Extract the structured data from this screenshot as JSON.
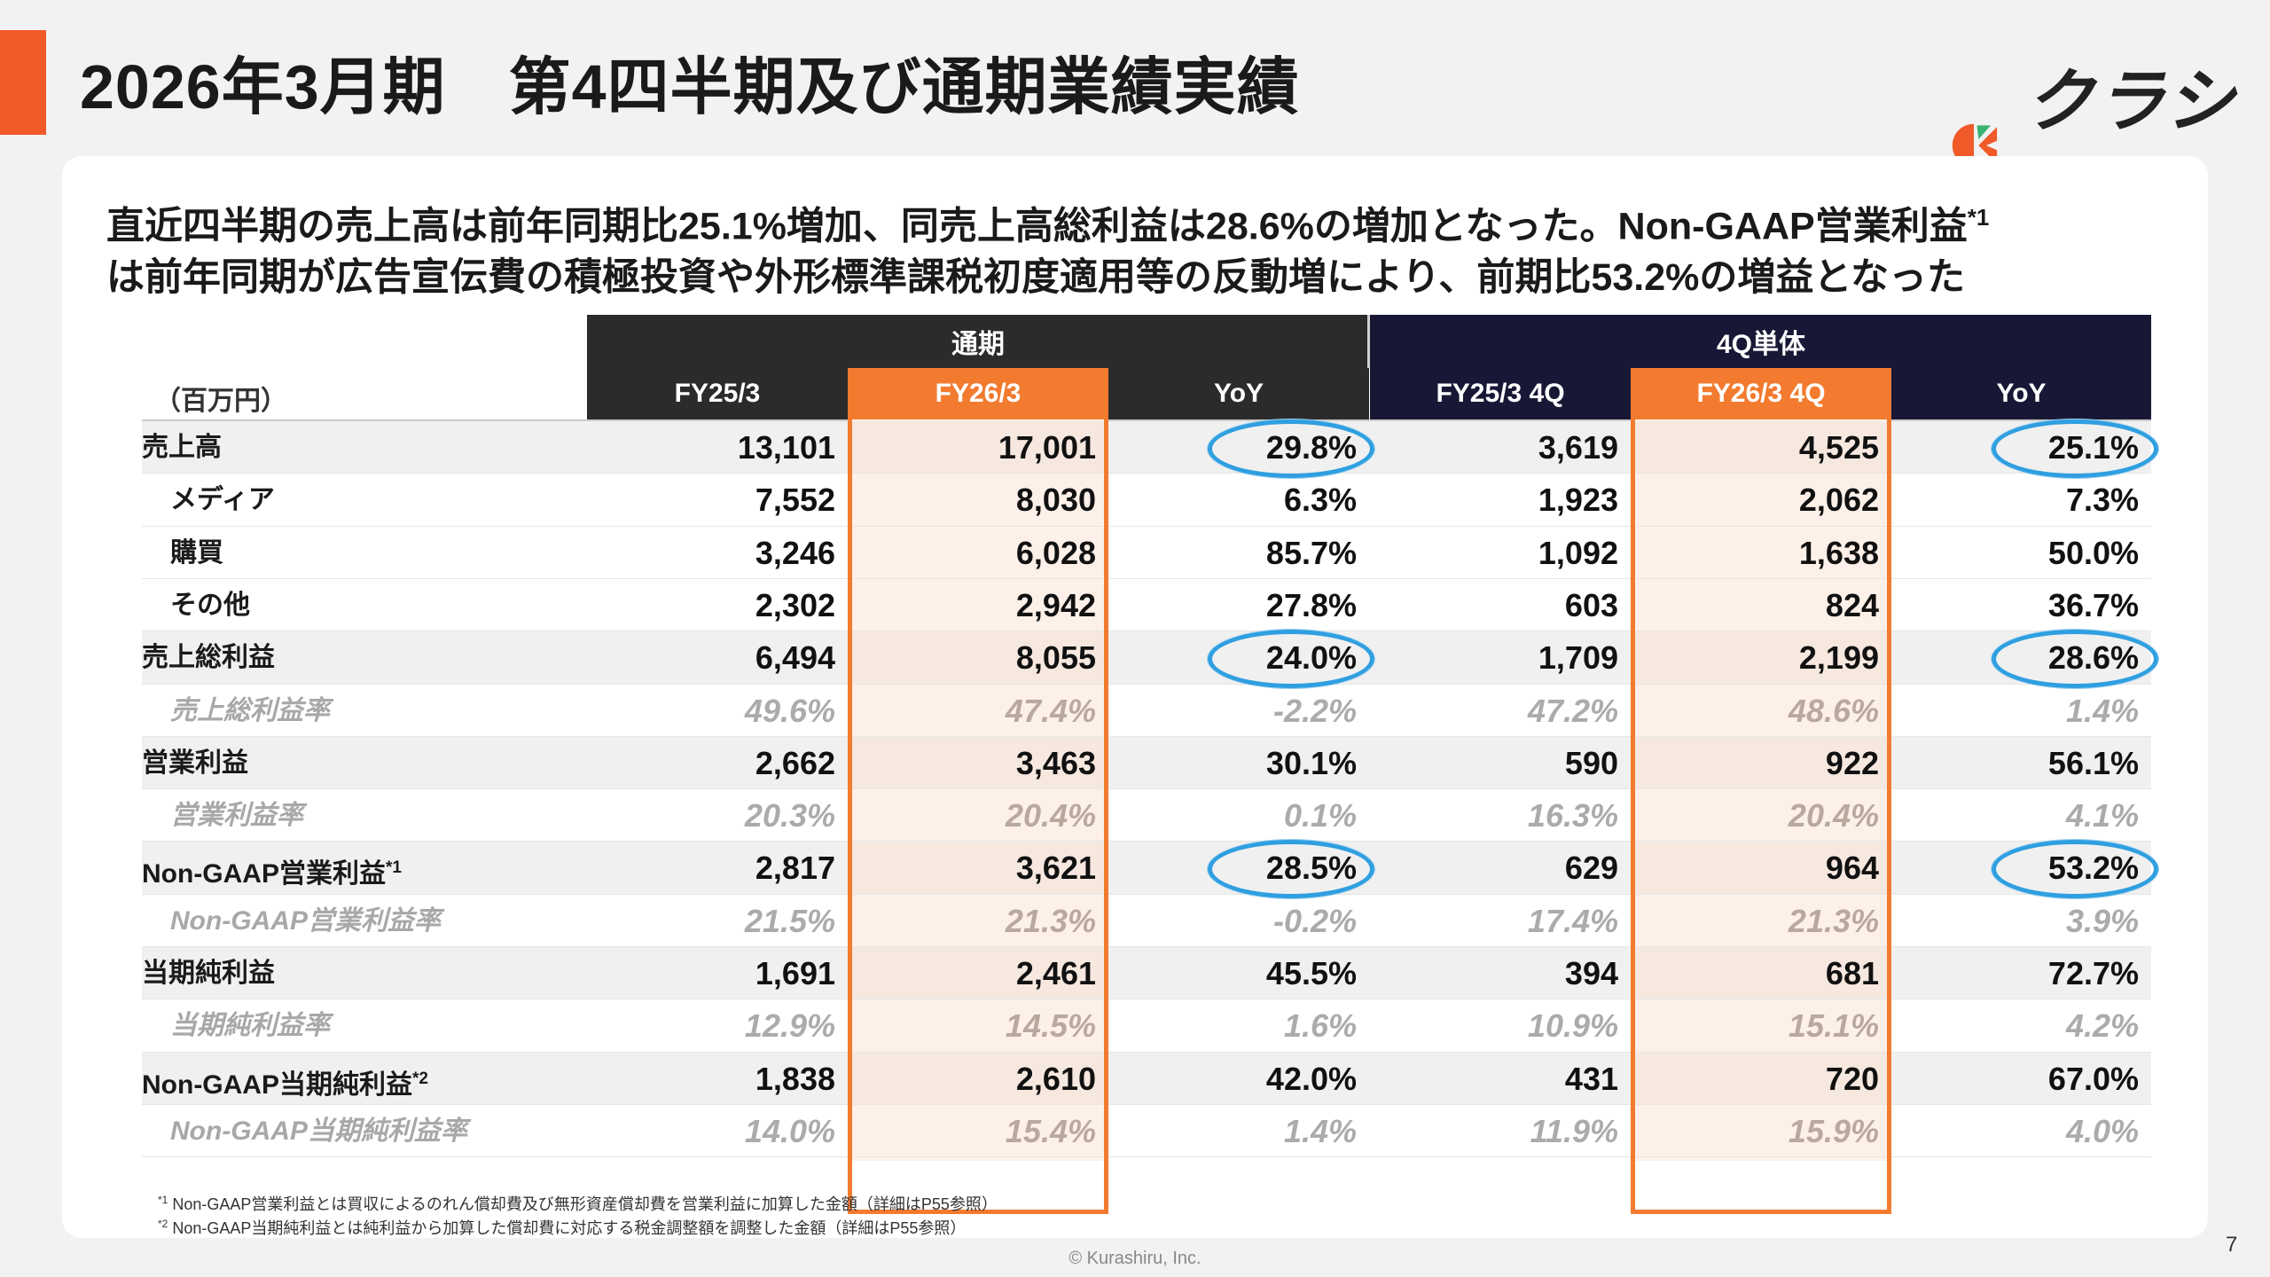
{
  "page": {
    "title": "2026年3月期　第4四半期及び通期業績実績",
    "brand": "クラシル",
    "page_number": "7",
    "copyright": "© Kurashiru, Inc.",
    "accent_color": "#f05a28"
  },
  "lead": {
    "line1": "直近四半期の売上高は前年同期比25.1%増加、同売上高総利益は28.6%の増加となった。Non-GAAP営業利益",
    "line1_sup": "*1",
    "line2": "は前年同期が広告宣伝費の積極投資や外形標準課税初度適用等の反動増により、前期比53.2%の増益となった"
  },
  "table": {
    "unit": "（百万円）",
    "group_full_year": "通期",
    "group_quarter": "4Q単体",
    "columns": [
      "FY25/3",
      "FY26/3",
      "YoY",
      "FY25/3 4Q",
      "FY26/3 4Q",
      "YoY"
    ],
    "highlight_color": "#f27b2f",
    "circle_color": "#2f9fe0",
    "rows": [
      {
        "label": "売上高",
        "sup": "",
        "values": [
          "13,101",
          "17,001",
          "29.8%",
          "3,619",
          "4,525",
          "25.1%"
        ]
      },
      {
        "label": "メディア",
        "sup": "",
        "values": [
          "7,552",
          "8,030",
          "6.3%",
          "1,923",
          "2,062",
          "7.3%"
        ]
      },
      {
        "label": "購買",
        "sup": "",
        "values": [
          "3,246",
          "6,028",
          "85.7%",
          "1,092",
          "1,638",
          "50.0%"
        ]
      },
      {
        "label": "その他",
        "sup": "",
        "values": [
          "2,302",
          "2,942",
          "27.8%",
          "603",
          "824",
          "36.7%"
        ]
      },
      {
        "label": "売上総利益",
        "sup": "",
        "values": [
          "6,494",
          "8,055",
          "24.0%",
          "1,709",
          "2,199",
          "28.6%"
        ]
      },
      {
        "label": "売上総利益率",
        "sup": "",
        "values": [
          "49.6%",
          "47.4%",
          "-2.2%",
          "47.2%",
          "48.6%",
          "1.4%"
        ]
      },
      {
        "label": "営業利益",
        "sup": "",
        "values": [
          "2,662",
          "3,463",
          "30.1%",
          "590",
          "922",
          "56.1%"
        ]
      },
      {
        "label": "営業利益率",
        "sup": "",
        "values": [
          "20.3%",
          "20.4%",
          "0.1%",
          "16.3%",
          "20.4%",
          "4.1%"
        ]
      },
      {
        "label": "Non-GAAP営業利益",
        "sup": "*1",
        "values": [
          "2,817",
          "3,621",
          "28.5%",
          "629",
          "964",
          "53.2%"
        ]
      },
      {
        "label": "Non-GAAP営業利益率",
        "sup": "",
        "values": [
          "21.5%",
          "21.3%",
          "-0.2%",
          "17.4%",
          "21.3%",
          "3.9%"
        ]
      },
      {
        "label": "当期純利益",
        "sup": "",
        "values": [
          "1,691",
          "2,461",
          "45.5%",
          "394",
          "681",
          "72.7%"
        ]
      },
      {
        "label": "当期純利益率",
        "sup": "",
        "values": [
          "12.9%",
          "14.5%",
          "1.6%",
          "10.9%",
          "15.1%",
          "4.2%"
        ]
      },
      {
        "label": "Non-GAAP当期純利益",
        "sup": "*2",
        "values": [
          "1,838",
          "2,610",
          "42.0%",
          "431",
          "720",
          "67.0%"
        ]
      },
      {
        "label": "Non-GAAP当期純利益率",
        "sup": "",
        "values": [
          "14.0%",
          "15.4%",
          "1.4%",
          "11.9%",
          "15.9%",
          "4.0%"
        ]
      }
    ]
  },
  "footnotes": {
    "note1_mark": "*1",
    "note1": "Non-GAAP営業利益とは買収によるのれん償却費及び無形資産償却費を営業利益に加算した金額（詳細はP55参照）",
    "note2_mark": "*2",
    "note2": "Non-GAAP当期純利益とは純利益から加算した償却費に対応する税金調整額を調整した金額（詳細はP55参照）"
  }
}
